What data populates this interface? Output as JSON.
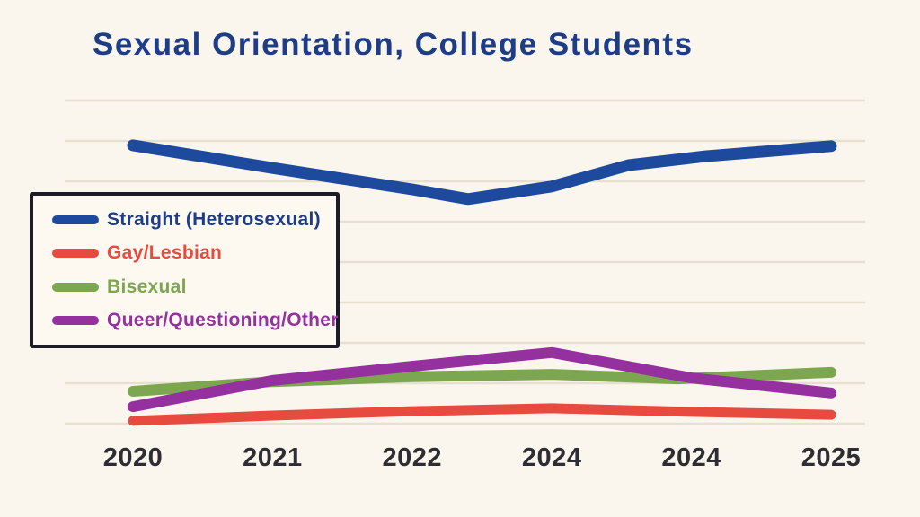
{
  "page": {
    "background": "#FBF6ED"
  },
  "title": {
    "text": "Sexual Orientation, College Students",
    "color": "#1E3D87"
  },
  "legend": {
    "border_color": "#1D1D27",
    "background": "#FDF8F0"
  },
  "axis": {
    "tick_label_color": "#2E2D33",
    "gridline_color": "#E6E0D1"
  },
  "chart_data": {
    "type": "line",
    "title": "Sexual Orientation, College Students",
    "categories": [
      "2020",
      "2021",
      "2022",
      "2024",
      "2024",
      "2025"
    ],
    "xlabel": "",
    "ylabel": "",
    "units": "percent (estimated, no y-axis labels shown)",
    "ylim": [
      0,
      80
    ],
    "grid": "horizontal gridlines every 10, unlabeled",
    "legend_position": "boxed, upper left",
    "series": [
      {
        "name": "Straight (Heterosexual)",
        "color": "#1E4A9D",
        "label_color": "#1E3D87",
        "stroke_width": 13,
        "values": [
          68.9,
          63.3,
          58.0,
          58.7,
          66.2,
          68.7
        ],
        "points": [
          [
            0,
            68.9
          ],
          [
            1,
            63.3
          ],
          [
            2,
            58.0
          ],
          [
            2.4,
            55.6
          ],
          [
            3,
            58.7
          ],
          [
            3.55,
            64.0
          ],
          [
            4.1,
            66.2
          ],
          [
            5,
            68.7
          ]
        ]
      },
      {
        "name": "Gay/Lesbian",
        "color": "#E74A3F",
        "label_color": "#E74A3F",
        "stroke_width": 11,
        "values": [
          0.7,
          2.0,
          3.1,
          3.8,
          2.9,
          2.2
        ],
        "points": [
          [
            0,
            0.7
          ],
          [
            1,
            2.0
          ],
          [
            2,
            3.1
          ],
          [
            3,
            3.8
          ],
          [
            4,
            2.9
          ],
          [
            5,
            2.2
          ]
        ]
      },
      {
        "name": "Bisexual",
        "color": "#7DA651",
        "label_color": "#7DA651",
        "stroke_width": 12,
        "values": [
          8.0,
          10.4,
          11.6,
          12.2,
          11.3,
          12.7
        ],
        "points": [
          [
            0,
            8.0
          ],
          [
            1,
            10.4
          ],
          [
            2,
            11.6
          ],
          [
            3,
            12.2
          ],
          [
            3.9,
            11.1
          ],
          [
            5,
            12.7
          ]
        ]
      },
      {
        "name": "Queer/Questioning/Other",
        "color": "#95309F",
        "label_color": "#95309F",
        "stroke_width": 12,
        "values": [
          4.2,
          10.7,
          14.2,
          17.6,
          11.3,
          7.6
        ],
        "points": [
          [
            0,
            4.2
          ],
          [
            1,
            10.7
          ],
          [
            2,
            14.2
          ],
          [
            3,
            17.6
          ],
          [
            4,
            11.3
          ],
          [
            5,
            7.6
          ]
        ]
      }
    ]
  }
}
